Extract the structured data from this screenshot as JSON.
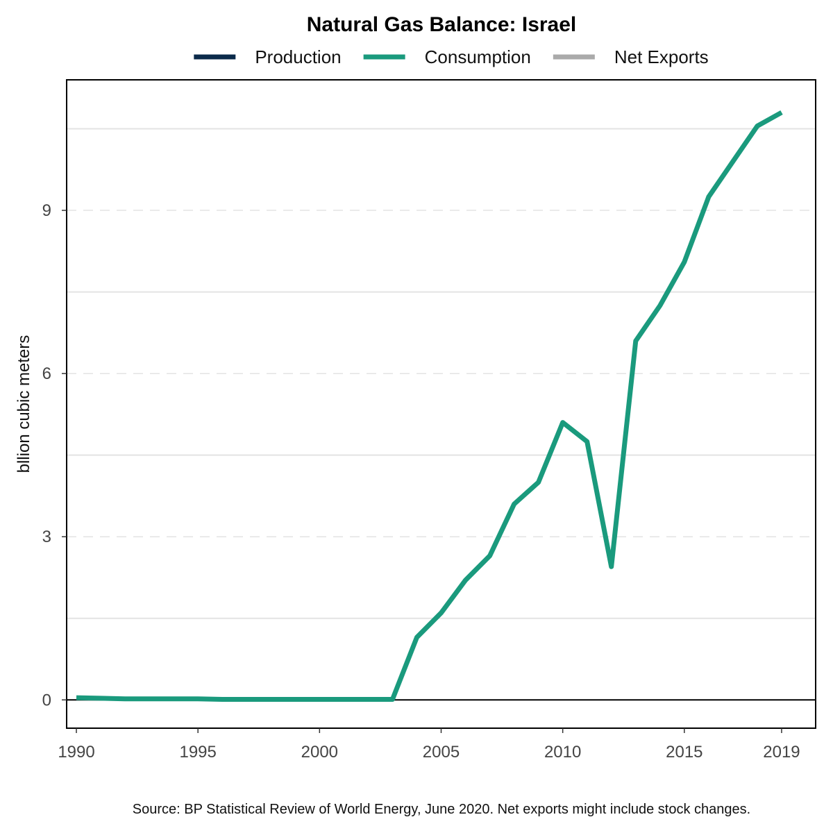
{
  "chart_data": {
    "type": "line",
    "title": "Natural Gas Balance: Israel",
    "xlabel": "",
    "ylabel": "bllion cubic meters",
    "xlim": [
      1989.6,
      1990.0
    ],
    "ylim": [
      -0.52,
      11.4
    ],
    "x_ticks": [
      1990,
      1995,
      2000,
      2005,
      2010,
      2015,
      2019
    ],
    "y_ticks": [
      0,
      3,
      6,
      9
    ],
    "y_minor_gridlines": [
      1.5,
      4.5,
      7.5,
      10.5
    ],
    "grid": true,
    "legend_position": "top",
    "series": [
      {
        "name": "Production",
        "color": "#0b2a4a",
        "values": []
      },
      {
        "name": "Consumption",
        "color": "#1a9a7d",
        "x": [
          1990,
          1991,
          1992,
          1993,
          1994,
          1995,
          1996,
          1997,
          1998,
          1999,
          2000,
          2001,
          2002,
          2003,
          2004,
          2005,
          2006,
          2007,
          2008,
          2009,
          2010,
          2011,
          2012,
          2013,
          2014,
          2015,
          2016,
          2017,
          2018,
          2019
        ],
        "values": [
          0.04,
          0.03,
          0.02,
          0.02,
          0.02,
          0.02,
          0.01,
          0.01,
          0.01,
          0.01,
          0.01,
          0.01,
          0.01,
          0.01,
          1.15,
          1.6,
          2.2,
          2.65,
          3.6,
          4.0,
          5.1,
          4.75,
          2.45,
          6.6,
          7.25,
          8.05,
          9.25,
          9.9,
          10.55,
          10.8
        ]
      },
      {
        "name": "Net Exports",
        "color": "#aaaaaa",
        "values": []
      }
    ],
    "source": "Source: BP Statistical Review of World Energy, June 2020. Net exports might include stock changes."
  }
}
